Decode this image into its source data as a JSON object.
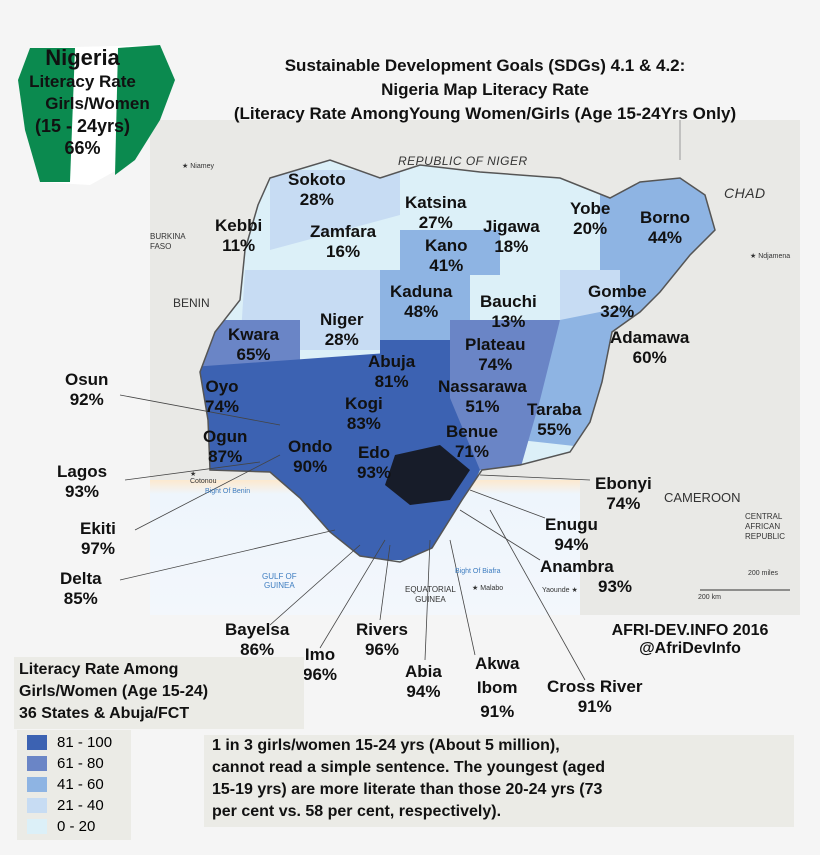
{
  "header": {
    "title_line1": "Sustainable Development Goals (SDGs) 4.1 & 4.2:",
    "title_line2": "Nigeria Map Literacy Rate",
    "title_line3": "(Literacy Rate AmongYoung Women/Girls (Age 15-24Yrs Only)"
  },
  "flag_badge": {
    "country": "Nigeria",
    "line1": "Literacy Rate",
    "line2": "Girls/Women",
    "line3": "(15 - 24yrs)",
    "value": "66%",
    "colors": {
      "green": "#0b8a4f",
      "white": "#ffffff"
    }
  },
  "states": [
    {
      "name": "Sokoto",
      "value": "28%"
    },
    {
      "name": "Katsina",
      "value": "27%"
    },
    {
      "name": "Kebbi",
      "value": "11%"
    },
    {
      "name": "Zamfara",
      "value": "16%"
    },
    {
      "name": "Jigawa",
      "value": "18%"
    },
    {
      "name": "Yobe",
      "value": "20%"
    },
    {
      "name": "Borno",
      "value": "44%"
    },
    {
      "name": "Kano",
      "value": "41%"
    },
    {
      "name": "Kaduna",
      "value": "48%"
    },
    {
      "name": "Bauchi",
      "value": "13%"
    },
    {
      "name": "Gombe",
      "value": "32%"
    },
    {
      "name": "Niger",
      "value": "28%"
    },
    {
      "name": "Kwara",
      "value": "65%"
    },
    {
      "name": "Adamawa",
      "value": "60%"
    },
    {
      "name": "Plateau",
      "value": "74%"
    },
    {
      "name": "Abuja",
      "value": "81%"
    },
    {
      "name": "Nassarawa",
      "value": "51%"
    },
    {
      "name": "Osun",
      "value": "92%"
    },
    {
      "name": "Oyo",
      "value": "74%"
    },
    {
      "name": "Kogi",
      "value": "83%"
    },
    {
      "name": "Taraba",
      "value": "55%"
    },
    {
      "name": "Ogun",
      "value": "87%"
    },
    {
      "name": "Benue",
      "value": "71%"
    },
    {
      "name": "Ondo",
      "value": "90%"
    },
    {
      "name": "Edo",
      "value": "93%"
    },
    {
      "name": "Lagos",
      "value": "93%"
    },
    {
      "name": "Ebonyi",
      "value": "74%"
    },
    {
      "name": "Ekiti",
      "value": "97%"
    },
    {
      "name": "Enugu",
      "value": "94%"
    },
    {
      "name": "Delta",
      "value": "85%"
    },
    {
      "name": "Anambra",
      "value": "93%"
    },
    {
      "name": "Bayelsa",
      "value": "86%"
    },
    {
      "name": "Rivers",
      "value": "96%"
    },
    {
      "name": "Imo",
      "value": "96%"
    },
    {
      "name": "Akwa",
      "name2": "Ibom",
      "value": "91%"
    },
    {
      "name": "Abia",
      "value": "94%"
    },
    {
      "name": "Cross River",
      "value": "91%"
    }
  ],
  "geography": {
    "niger": "REPUBLIC OF NIGER",
    "chad": "CHAD",
    "benin": "BENIN",
    "burkina1": "BURKINA",
    "burkina2": "FASO",
    "cameroon": "CAMEROON",
    "car1": "CENTRAL",
    "car2": "AFRICAN",
    "car3": "REPUBLIC",
    "eqg1": "EQUATORIAL",
    "eqg2": "GUINEA",
    "niamey": "Niamey",
    "ndjamena": "Ndjamena",
    "cotonou": "Cotonou",
    "malabo": "Malabo",
    "yaounde": "Yaounde",
    "bight_benin": "Bight Of Benin",
    "bight_biafra": "Bight Of Biafra",
    "gulf1": "GULF OF",
    "gulf2": "GUINEA",
    "scale_km": "200 km",
    "scale_mi": "200 miles"
  },
  "credit": {
    "line1": "AFRI-DEV.INFO 2016",
    "line2": "@AfriDevInfo"
  },
  "legend": {
    "title_line1": "Literacy Rate Among",
    "title_line2": "Girls/Women (Age 15-24)",
    "title_line3": "36 States & Abuja/FCT",
    "items": [
      {
        "label": "81 - 100",
        "color": "#3c62b2"
      },
      {
        "label": "61 - 80",
        "color": "#6a85c6"
      },
      {
        "label": "41 - 60",
        "color": "#8eb4e3"
      },
      {
        "label": "21 - 40",
        "color": "#c7dcf3"
      },
      {
        "label": "0 - 20",
        "color": "#dcf0f8"
      }
    ]
  },
  "note": {
    "line1": "1 in 3 girls/women 15-24 yrs (About 5 million),",
    "line2": "cannot read a simple sentence. The youngest (aged",
    "line3": "15-19 yrs) are more literate than those 20-24 yrs (73",
    "line4": "per cent vs. 58 per cent, respectively)."
  }
}
